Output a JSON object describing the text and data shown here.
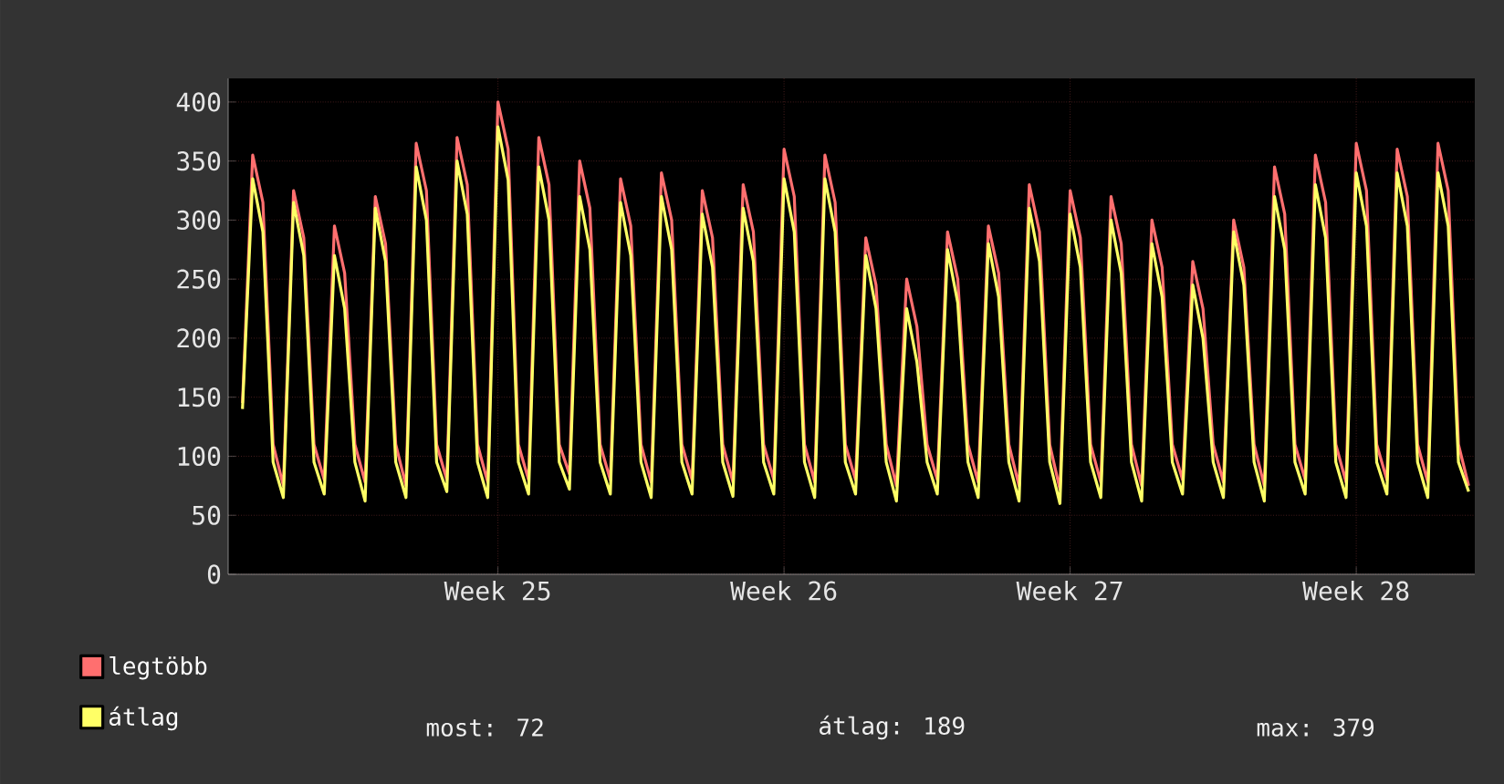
{
  "chart_data": {
    "type": "line",
    "categories": [
      null,
      null,
      null,
      null,
      null,
      null,
      null,
      null,
      null,
      null,
      null,
      null,
      null,
      null,
      null,
      null,
      null,
      null,
      null,
      null,
      null,
      null,
      null,
      null,
      null,
      "Week 25",
      null,
      null,
      null,
      null,
      null,
      null,
      null,
      null,
      null,
      null,
      null,
      null,
      null,
      null,
      null,
      null,
      null,
      null,
      null,
      null,
      null,
      null,
      null,
      null,
      null,
      null,
      null,
      "Week 26",
      null,
      null,
      null,
      null,
      null,
      null,
      null,
      null,
      null,
      null,
      null,
      null,
      null,
      null,
      null,
      null,
      null,
      null,
      null,
      null,
      null,
      null,
      null,
      null,
      null,
      null,
      null,
      "Week 27",
      null,
      null,
      null,
      null,
      null,
      null,
      null,
      null,
      null,
      null,
      null,
      null,
      null,
      null,
      null,
      null,
      null,
      null,
      null,
      null,
      null,
      null,
      null,
      null,
      null,
      null,
      null,
      "Week 28",
      null,
      null,
      null,
      null,
      null,
      null,
      null,
      null,
      null,
      null,
      null
    ],
    "series": [
      {
        "name": "legtöbb",
        "color": "#ff6f6f",
        "values": [
          145,
          355,
          315,
          110,
          75,
          325,
          285,
          110,
          80,
          295,
          255,
          110,
          78,
          320,
          280,
          110,
          75,
          365,
          325,
          110,
          80,
          370,
          330,
          110,
          78,
          400,
          360,
          110,
          80,
          370,
          330,
          110,
          85,
          350,
          310,
          110,
          80,
          335,
          295,
          110,
          78,
          340,
          300,
          110,
          80,
          325,
          285,
          110,
          78,
          330,
          290,
          110,
          80,
          360,
          320,
          110,
          78,
          355,
          315,
          110,
          80,
          285,
          245,
          110,
          75,
          250,
          210,
          110,
          80,
          290,
          250,
          110,
          78,
          295,
          255,
          110,
          75,
          330,
          290,
          110,
          72,
          325,
          285,
          110,
          78,
          320,
          280,
          110,
          75,
          300,
          260,
          110,
          80,
          265,
          225,
          110,
          78,
          300,
          260,
          110,
          75,
          345,
          305,
          110,
          80,
          355,
          315,
          110,
          78,
          365,
          325,
          110,
          80,
          360,
          320,
          110,
          78,
          365,
          325,
          110,
          75
        ]
      },
      {
        "name": "átlag",
        "color": "#ffff66",
        "values": [
          140,
          335,
          290,
          95,
          65,
          315,
          270,
          95,
          68,
          270,
          225,
          95,
          62,
          310,
          265,
          95,
          65,
          345,
          300,
          95,
          70,
          350,
          305,
          95,
          65,
          379,
          334,
          95,
          68,
          345,
          300,
          95,
          72,
          320,
          275,
          95,
          68,
          315,
          270,
          95,
          65,
          320,
          275,
          95,
          68,
          305,
          260,
          95,
          66,
          310,
          265,
          95,
          68,
          335,
          290,
          95,
          65,
          335,
          290,
          95,
          68,
          270,
          225,
          95,
          62,
          225,
          180,
          95,
          68,
          275,
          230,
          95,
          65,
          280,
          235,
          95,
          62,
          310,
          265,
          95,
          60,
          305,
          260,
          95,
          65,
          300,
          255,
          95,
          62,
          280,
          235,
          95,
          68,
          245,
          200,
          95,
          65,
          290,
          245,
          95,
          62,
          320,
          275,
          95,
          68,
          330,
          285,
          95,
          65,
          340,
          295,
          95,
          68,
          340,
          295,
          95,
          65,
          340,
          295,
          95,
          70
        ]
      }
    ],
    "ylim": [
      0,
      420
    ],
    "yticks": [
      0,
      50,
      100,
      150,
      200,
      250,
      300,
      350,
      400
    ],
    "grid": true,
    "legend": "bottom",
    "annotations": [
      "most: 72",
      "átlag: 189",
      "max: 379"
    ]
  }
}
